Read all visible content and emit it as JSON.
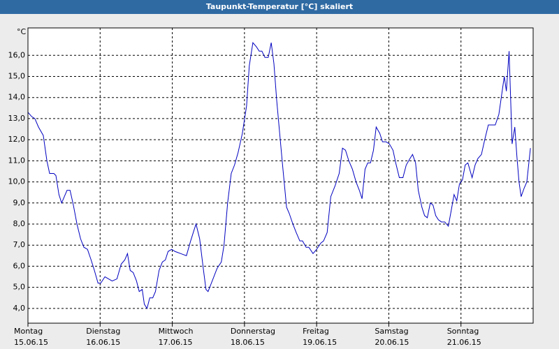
{
  "chart_data": {
    "type": "line",
    "title": "Taupunkt-Temperatur [°C] skaliert",
    "y_unit": "°C",
    "xlim": [
      0,
      168
    ],
    "ylim": [
      3.3,
      17.3
    ],
    "xticks": [
      {
        "value": 0,
        "label": "Montag"
      },
      {
        "value": 24,
        "label": "Dienstag"
      },
      {
        "value": 48,
        "label": "Mittwoch"
      },
      {
        "value": 72,
        "label": "Donnerstag"
      },
      {
        "value": 96,
        "label": "Freitag"
      },
      {
        "value": 120,
        "label": "Samstag"
      },
      {
        "value": 144,
        "label": "Sonntag"
      }
    ],
    "xtick_dates": [
      "15.06.15",
      "16.06.15",
      "17.06.15",
      "18.06.15",
      "19.06.15",
      "20.06.15",
      "21.06.15"
    ],
    "yticks": [
      {
        "value": 4,
        "label": "4,0"
      },
      {
        "value": 5,
        "label": "5,0"
      },
      {
        "value": 6,
        "label": "6,0"
      },
      {
        "value": 7,
        "label": "7,0"
      },
      {
        "value": 8,
        "label": "8,0"
      },
      {
        "value": 9,
        "label": "9,0"
      },
      {
        "value": 10,
        "label": "10,0"
      },
      {
        "value": 11,
        "label": "11,0"
      },
      {
        "value": 12,
        "label": "12,0"
      },
      {
        "value": 13,
        "label": "13,0"
      },
      {
        "value": 14,
        "label": "14,0"
      },
      {
        "value": 15,
        "label": "15,0"
      },
      {
        "value": 16,
        "label": "16,0"
      }
    ],
    "grid": true,
    "series": [
      {
        "color": "#0000c0",
        "x": [
          0,
          1.2,
          2.3,
          3.5,
          5.1,
          6.3,
          7.2,
          8.6,
          9.3,
          10.3,
          11.2,
          12.1,
          13.0,
          14.0,
          15.1,
          16.3,
          17.5,
          18.6,
          19.8,
          21.0,
          22.1,
          23.3,
          24.2,
          25.6,
          26.8,
          28.0,
          29.6,
          31.0,
          32.2,
          33.1,
          34.0,
          35.0,
          36.1,
          37.0,
          38.0,
          38.7,
          39.6,
          40.5,
          41.5,
          42.4,
          43.6,
          44.7,
          45.7,
          46.6,
          47.8,
          48.9,
          50.8,
          52.7,
          54.1,
          55.2,
          55.9,
          57.1,
          58.3,
          59.2,
          59.9,
          61.0,
          62.9,
          64.3,
          65.2,
          66.4,
          67.6,
          68.7,
          69.9,
          71.3,
          72.7,
          73.6,
          74.8,
          76.0,
          76.9,
          77.8,
          78.8,
          79.9,
          80.9,
          81.8,
          82.7,
          83.9,
          84.8,
          86.0,
          86.9,
          88.1,
          89.2,
          90.4,
          91.3,
          92.5,
          93.4,
          94.8,
          96.0,
          97.4,
          98.3,
          99.5,
          100.7,
          102.1,
          103.5,
          104.6,
          105.6,
          106.7,
          107.9,
          109.1,
          110.2,
          111.1,
          112.1,
          113.0,
          113.9,
          114.9,
          115.8,
          117.0,
          117.9,
          119.1,
          120.2,
          121.4,
          122.3,
          123.5,
          124.7,
          125.8,
          127.0,
          127.9,
          128.9,
          129.8,
          131.0,
          131.9,
          132.8,
          133.8,
          134.7,
          135.6,
          136.5,
          137.5,
          138.6,
          139.8,
          140.7,
          141.7,
          142.6,
          143.5,
          144.5,
          145.4,
          146.3,
          147.7,
          148.7,
          149.6,
          150.8,
          151.9,
          153.1,
          154.3,
          155.4,
          156.6,
          157.8,
          158.4,
          159.1,
          160.0,
          161.0,
          161.9,
          162.6,
          163.3,
          164.0,
          165.0,
          165.9,
          167.1
        ],
        "values": [
          13.3,
          13.1,
          13.0,
          12.6,
          12.2,
          11.0,
          10.4,
          10.4,
          10.3,
          9.4,
          9.0,
          9.3,
          9.6,
          9.6,
          8.9,
          8.0,
          7.3,
          6.9,
          6.8,
          6.3,
          5.8,
          5.2,
          5.2,
          5.5,
          5.4,
          5.3,
          5.4,
          6.1,
          6.3,
          6.6,
          5.8,
          5.7,
          5.3,
          4.8,
          4.9,
          4.2,
          4.0,
          4.5,
          4.5,
          4.8,
          5.8,
          6.2,
          6.3,
          6.7,
          6.8,
          6.7,
          6.6,
          6.5,
          7.2,
          7.7,
          8.0,
          7.3,
          5.9,
          4.9,
          4.8,
          5.2,
          5.9,
          6.2,
          7.0,
          9.0,
          10.4,
          10.8,
          11.4,
          12.3,
          13.6,
          15.5,
          16.6,
          16.4,
          16.2,
          16.2,
          15.9,
          15.9,
          16.6,
          15.6,
          13.9,
          12.0,
          10.6,
          8.8,
          8.5,
          8.0,
          7.6,
          7.2,
          7.2,
          6.9,
          6.9,
          6.6,
          6.8,
          7.1,
          7.2,
          7.6,
          9.3,
          9.8,
          10.4,
          11.6,
          11.5,
          11.0,
          10.6,
          10.0,
          9.6,
          9.2,
          10.6,
          10.9,
          10.9,
          11.5,
          12.6,
          12.3,
          11.9,
          11.9,
          11.8,
          11.5,
          10.9,
          10.2,
          10.2,
          10.8,
          11.1,
          11.3,
          10.9,
          9.6,
          8.8,
          8.4,
          8.3,
          9.0,
          8.9,
          8.4,
          8.2,
          8.1,
          8.1,
          7.9,
          8.6,
          9.4,
          9.1,
          9.9,
          10.1,
          10.8,
          10.9,
          10.2,
          10.8,
          11.1,
          11.3,
          12.0,
          12.7,
          12.7,
          12.7,
          13.2,
          14.4,
          15.0,
          14.3,
          16.2,
          11.8,
          12.6,
          11.2,
          10.0,
          9.3,
          9.7,
          10.0,
          11.6
        ]
      }
    ]
  }
}
